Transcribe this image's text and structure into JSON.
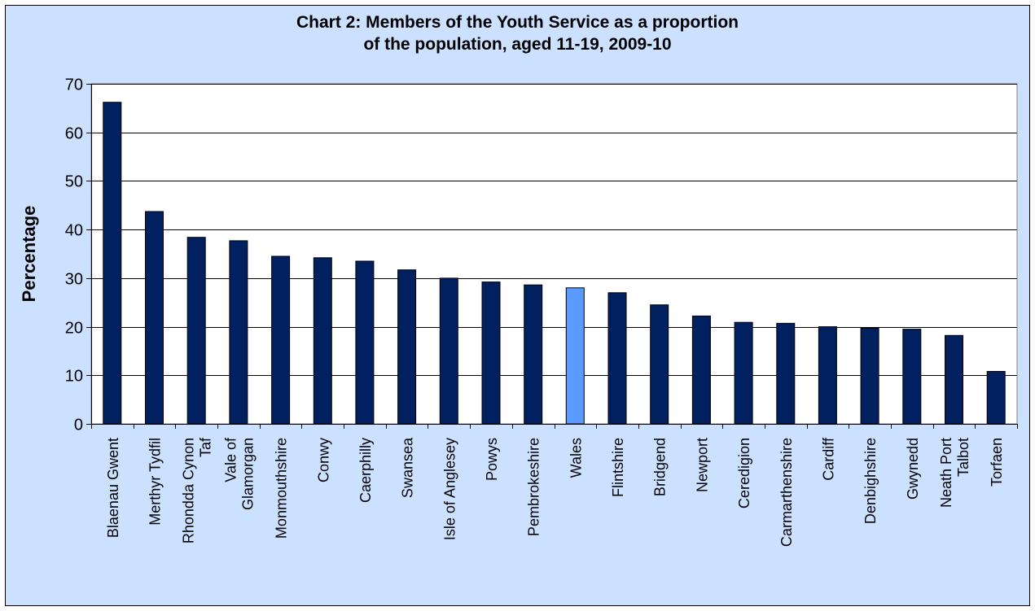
{
  "chart_data": {
    "type": "bar",
    "title_lines": [
      "Chart 2: Members of the Youth Service as a proportion",
      "of the population, aged 11-19, 2009-10"
    ],
    "xlabel": "",
    "ylabel": "Percentage",
    "ylim": [
      0,
      70
    ],
    "yticks": [
      0,
      10,
      20,
      30,
      40,
      50,
      60,
      70
    ],
    "grid": true,
    "legend": "none",
    "categories": [
      [
        "Blaenau Gwent"
      ],
      [
        "Merthyr Tydfil"
      ],
      [
        "Rhondda Cynon",
        "Taf"
      ],
      [
        "Vale of",
        "Glamorgan"
      ],
      [
        "Monmouthshire"
      ],
      [
        "Conwy"
      ],
      [
        "Caerphilly"
      ],
      [
        "Swansea"
      ],
      [
        "Isle of Anglesey"
      ],
      [
        "Powys"
      ],
      [
        "Pembrokeshire"
      ],
      [
        "Wales"
      ],
      [
        "Flintshire"
      ],
      [
        "Bridgend"
      ],
      [
        "Newport"
      ],
      [
        "Ceredigion"
      ],
      [
        "Carmarthenshire"
      ],
      [
        "Cardiff"
      ],
      [
        "Denbighshire"
      ],
      [
        "Gwynedd"
      ],
      [
        "Neath Port",
        "Talbot"
      ],
      [
        "Torfaen"
      ]
    ],
    "values": [
      66.2,
      43.7,
      38.4,
      37.7,
      34.5,
      34.2,
      33.5,
      31.7,
      30.0,
      29.2,
      28.6,
      28.0,
      27.0,
      24.5,
      22.2,
      20.9,
      20.7,
      20.0,
      19.7,
      19.5,
      18.2,
      10.8
    ],
    "highlight_category": "Wales",
    "colors": {
      "bar": "#002060",
      "highlight_bar": "#5b9bff",
      "bar_border": "#000000",
      "plot_background": "#ffffff",
      "chart_background": "#cce0ff",
      "gridline": "#000000"
    }
  }
}
